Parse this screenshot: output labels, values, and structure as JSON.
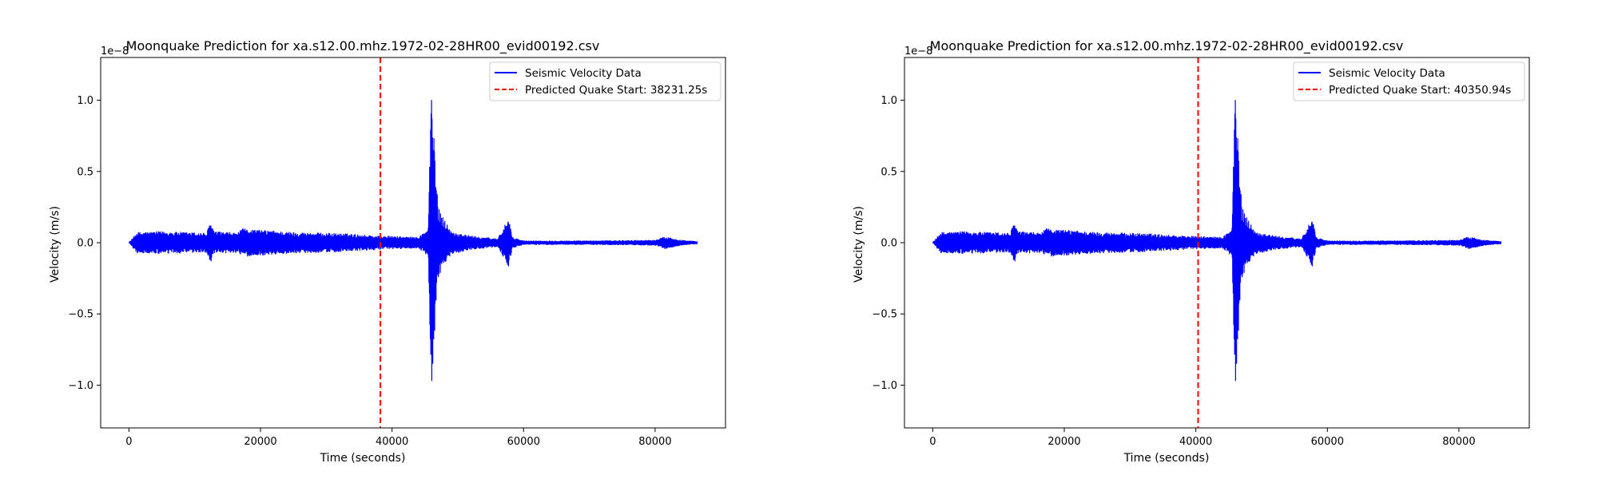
{
  "chart_data": [
    {
      "type": "line",
      "title": "Moonquake Prediction for xa.s12.00.mhz.1972-02-28HR00_evid00192.csv",
      "xlabel": "Time (seconds)",
      "ylabel": "Velocity (m/s)",
      "y_offset_label": "1e−8",
      "xlim": [
        -4300,
        90700
      ],
      "ylim": [
        -1.3,
        1.3
      ],
      "xticks": [
        0,
        20000,
        40000,
        60000,
        80000
      ],
      "xtick_labels": [
        "0",
        "20000",
        "40000",
        "60000",
        "80000"
      ],
      "yticks": [
        -1.0,
        -0.5,
        0.0,
        0.5,
        1.0
      ],
      "ytick_labels": [
        "−1.0",
        "−0.5",
        "0.0",
        "0.5",
        "1.0"
      ],
      "grid": false,
      "legend_position": "top-right",
      "series": [
        {
          "name": "Seismic Velocity Data",
          "color": "#0000ff",
          "x_range": [
            0,
            86400
          ],
          "envelope": [
            {
              "x": 0,
              "amp": 0.0
            },
            {
              "x": 500,
              "amp": 0.03
            },
            {
              "x": 1200,
              "amp": 0.075
            },
            {
              "x": 5000,
              "amp": 0.08
            },
            {
              "x": 11800,
              "amp": 0.07
            },
            {
              "x": 12400,
              "amp": 0.15
            },
            {
              "x": 13000,
              "amp": 0.08
            },
            {
              "x": 16500,
              "amp": 0.07
            },
            {
              "x": 17200,
              "amp": 0.1
            },
            {
              "x": 25000,
              "amp": 0.075
            },
            {
              "x": 33000,
              "amp": 0.065
            },
            {
              "x": 38000,
              "amp": 0.05
            },
            {
              "x": 44000,
              "amp": 0.04
            },
            {
              "x": 45500,
              "amp": 0.1
            },
            {
              "x": 46000,
              "amp": 1.2
            },
            {
              "x": 46400,
              "amp": 0.7
            },
            {
              "x": 47000,
              "amp": 0.25
            },
            {
              "x": 49000,
              "amp": 0.08
            },
            {
              "x": 52000,
              "amp": 0.05
            },
            {
              "x": 56000,
              "amp": 0.03
            },
            {
              "x": 57700,
              "amp": 0.17
            },
            {
              "x": 58300,
              "amp": 0.04
            },
            {
              "x": 60000,
              "amp": 0.015
            },
            {
              "x": 70000,
              "amp": 0.015
            },
            {
              "x": 80000,
              "amp": 0.02
            },
            {
              "x": 81500,
              "amp": 0.045
            },
            {
              "x": 84000,
              "amp": 0.02
            },
            {
              "x": 86400,
              "amp": 0.01
            }
          ]
        },
        {
          "name": "Predicted Quake Start: 38231.25s",
          "color": "#ff0000",
          "style": "dashed",
          "x": 38231.25
        }
      ]
    },
    {
      "type": "line",
      "title": "Moonquake Prediction for xa.s12.00.mhz.1972-02-28HR00_evid00192.csv",
      "xlabel": "Time (seconds)",
      "ylabel": "Velocity (m/s)",
      "y_offset_label": "1e−8",
      "xlim": [
        -4300,
        90700
      ],
      "ylim": [
        -1.3,
        1.3
      ],
      "xticks": [
        0,
        20000,
        40000,
        60000,
        80000
      ],
      "xtick_labels": [
        "0",
        "20000",
        "40000",
        "60000",
        "80000"
      ],
      "yticks": [
        -1.0,
        -0.5,
        0.0,
        0.5,
        1.0
      ],
      "ytick_labels": [
        "−1.0",
        "−0.5",
        "0.0",
        "0.5",
        "1.0"
      ],
      "grid": false,
      "legend_position": "top-right",
      "series": [
        {
          "name": "Seismic Velocity Data",
          "color": "#0000ff",
          "x_range": [
            0,
            86400
          ],
          "envelope": [
            {
              "x": 0,
              "amp": 0.0
            },
            {
              "x": 500,
              "amp": 0.03
            },
            {
              "x": 1200,
              "amp": 0.075
            },
            {
              "x": 5000,
              "amp": 0.08
            },
            {
              "x": 11800,
              "amp": 0.07
            },
            {
              "x": 12400,
              "amp": 0.15
            },
            {
              "x": 13000,
              "amp": 0.08
            },
            {
              "x": 16500,
              "amp": 0.07
            },
            {
              "x": 17200,
              "amp": 0.1
            },
            {
              "x": 25000,
              "amp": 0.075
            },
            {
              "x": 33000,
              "amp": 0.065
            },
            {
              "x": 38000,
              "amp": 0.05
            },
            {
              "x": 44000,
              "amp": 0.04
            },
            {
              "x": 45500,
              "amp": 0.1
            },
            {
              "x": 46000,
              "amp": 1.2
            },
            {
              "x": 46400,
              "amp": 0.7
            },
            {
              "x": 47000,
              "amp": 0.25
            },
            {
              "x": 49000,
              "amp": 0.08
            },
            {
              "x": 52000,
              "amp": 0.05
            },
            {
              "x": 56000,
              "amp": 0.03
            },
            {
              "x": 57700,
              "amp": 0.17
            },
            {
              "x": 58300,
              "amp": 0.04
            },
            {
              "x": 60000,
              "amp": 0.015
            },
            {
              "x": 70000,
              "amp": 0.015
            },
            {
              "x": 80000,
              "amp": 0.02
            },
            {
              "x": 81500,
              "amp": 0.045
            },
            {
              "x": 84000,
              "amp": 0.02
            },
            {
              "x": 86400,
              "amp": 0.01
            }
          ]
        },
        {
          "name": "Predicted Quake Start: 40350.94s",
          "color": "#ff0000",
          "style": "dashed",
          "x": 40350.94
        }
      ]
    }
  ]
}
